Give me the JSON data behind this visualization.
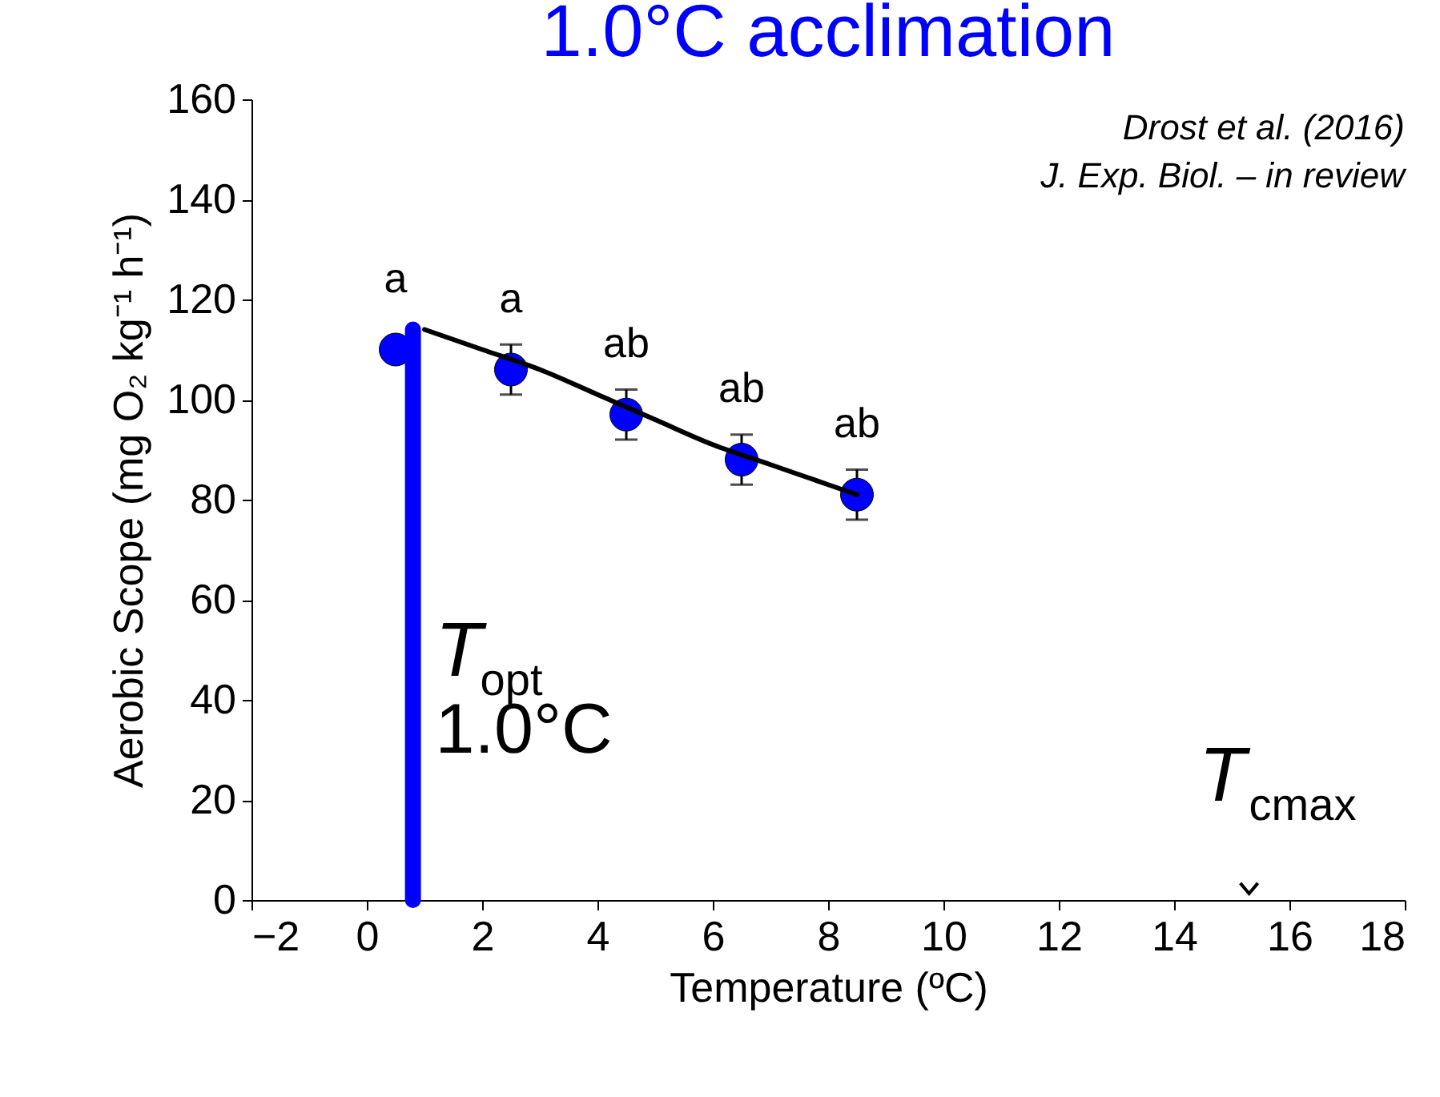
{
  "chart_data": {
    "type": "scatter",
    "title": "1.0°C acclimation",
    "xlabel": "Temperature (ºC)",
    "ylabel": "Aerobic Scope (mg O₂ kg⁻¹ h⁻¹)",
    "x": [
      0.5,
      2.5,
      4.5,
      6.5,
      8.5
    ],
    "series": [
      {
        "color": "#0000ff",
        "values": [
          110,
          106,
          97,
          88,
          81
        ],
        "errors": [
          null,
          5,
          5,
          5,
          5
        ],
        "marker": "circle"
      },
      {
        "type": "line",
        "color": "#000000",
        "x": [
          1,
          2,
          3,
          4,
          5,
          6,
          7,
          8,
          8.5
        ],
        "values": [
          114,
          110,
          106,
          101,
          96,
          91,
          87,
          83,
          81
        ]
      }
    ],
    "xlim": [
      -2,
      18
    ],
    "ylim": [
      0,
      160
    ],
    "xticks": [
      -2,
      0,
      2,
      4,
      6,
      8,
      10,
      12,
      14,
      16,
      18
    ],
    "yticks": [
      0,
      20,
      40,
      60,
      80,
      100,
      120,
      140,
      160
    ],
    "ref_lines": [
      {
        "axis": "x",
        "value": 0.8,
        "label": "T$_{opt}$ 1.0°C",
        "color": "#0000ff"
      }
    ],
    "annotations": [
      {
        "text": "a",
        "x": 0.5,
        "y": 110
      },
      {
        "text": "a",
        "x": 2.5,
        "y": 106
      },
      {
        "text": "ab",
        "x": 4.5,
        "y": 97
      },
      {
        "text": "ab",
        "x": 6.5,
        "y": 88
      },
      {
        "text": "ab",
        "x": 8.5,
        "y": 81
      },
      "T$_{cmax}$",
      "Drost et al. (2016)",
      "J. Exp. Biol. – in review"
    ],
    "grid": false
  }
}
